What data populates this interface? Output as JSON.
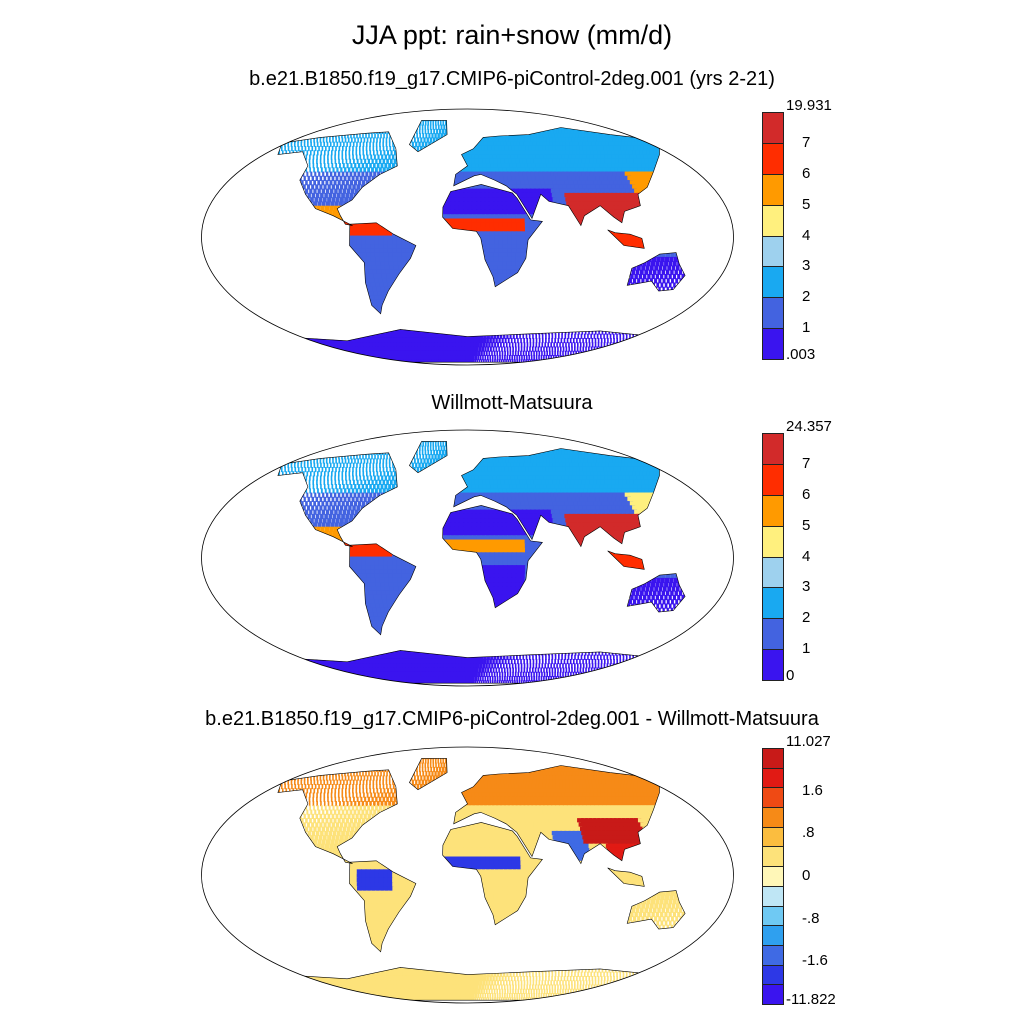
{
  "figure": {
    "main_title": "JJA ppt: rain+snow (mm/d)"
  },
  "panels": [
    {
      "id": "model",
      "title": "b.e21.B1850.f19_g17.CMIP6-piControl-2deg.001 (yrs 2-21)",
      "colorbar_colors": [
        "#3a14ef",
        "#4363e0",
        "#19a9f1",
        "#9ed1ee",
        "#fff07e",
        "#ff9a00",
        "#ff2d00",
        "#d22a2a"
      ],
      "colorbar_labels": [
        ".003",
        "1",
        "2",
        "3",
        "4",
        "5",
        "6",
        "7",
        "19.931"
      ],
      "label_min": ".003",
      "label_max": "19.931"
    },
    {
      "id": "observed",
      "title": "Willmott-Matsuura",
      "colorbar_colors": [
        "#3a14ef",
        "#4363e0",
        "#19a9f1",
        "#9ed1ee",
        "#fff07e",
        "#ff9a00",
        "#ff2d00",
        "#d22a2a"
      ],
      "colorbar_labels": [
        "0",
        "1",
        "2",
        "3",
        "4",
        "5",
        "6",
        "7",
        "24.357"
      ],
      "label_min": "0",
      "label_max": "24.357"
    },
    {
      "id": "difference",
      "title": "b.e21.B1850.f19_g17.CMIP6-piControl-2deg.001 - Willmott-Matsuura",
      "colorbar_colors": [
        "#3a14ef",
        "#2d38e6",
        "#3f6ae4",
        "#2fa0ef",
        "#6fc9f3",
        "#bfe6f5",
        "#fff7b8",
        "#fde27a",
        "#fbbd3f",
        "#f68a17",
        "#ef4a14",
        "#e11a14",
        "#c81a18"
      ],
      "colorbar_labels": [
        "-11.822",
        "-1.6",
        "-.8",
        "0",
        ".8",
        "1.6",
        "11.027"
      ],
      "label_min": "-11.822",
      "label_max": "11.027"
    }
  ]
}
